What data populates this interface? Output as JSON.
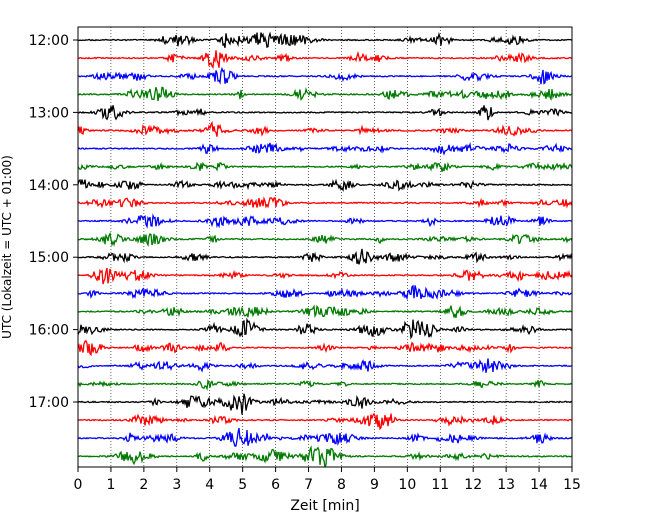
{
  "chart_data": {
    "type": "line",
    "title": "",
    "xlabel": "Zeit  [min]",
    "ylabel": "UTC (Lokalzeit = UTC + 01:00)",
    "xlim": [
      0,
      15
    ],
    "x_ticks": [
      "0",
      "1",
      "2",
      "3",
      "4",
      "5",
      "6",
      "7",
      "8",
      "9",
      "10",
      "11",
      "12",
      "13",
      "14",
      "15"
    ],
    "y_ticks": [
      "12:00",
      "13:00",
      "14:00",
      "15:00",
      "16:00",
      "17:00"
    ],
    "y_tick_row_index": [
      0,
      4,
      8,
      12,
      16,
      20
    ],
    "traces": 24,
    "trace_interval_minutes": 15,
    "trace_colors": [
      "#000000",
      "#ff0000",
      "#0000ff",
      "#007a00"
    ],
    "vertical_grid": "dotted",
    "legend": "none"
  }
}
